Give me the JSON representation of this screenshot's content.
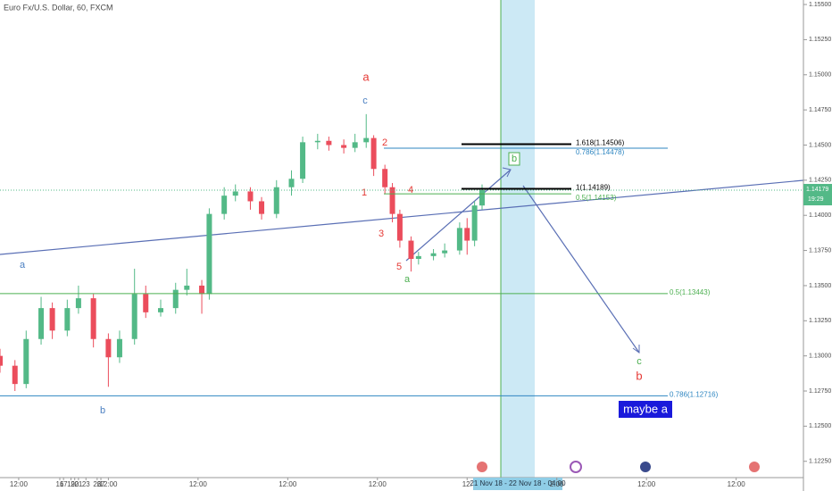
{
  "chart_data": {
    "type": "candlestick",
    "title": "Euro Fx/U.S. Dollar, 60, FXCM",
    "x": [
      0,
      4,
      7,
      11,
      14,
      18,
      21,
      25,
      29,
      32,
      36,
      39,
      43,
      47,
      50,
      54,
      56,
      60,
      63,
      67,
      70,
      74,
      78,
      81,
      85,
      88,
      92,
      95,
      98,
      100,
      103,
      105,
      107,
      110,
      112,
      116,
      119,
      123,
      125,
      127,
      129
    ],
    "open": [
      1.13,
      1.1293,
      1.128,
      1.1312,
      1.1334,
      1.1318,
      1.1334,
      1.1341,
      1.1312,
      1.1299,
      1.1312,
      1.1344,
      1.1331,
      1.1334,
      1.1347,
      1.135,
      1.1344,
      1.1401,
      1.1414,
      1.1417,
      1.141,
      1.1401,
      1.142,
      1.1426,
      1.1452,
      1.1453,
      1.145,
      1.1448,
      1.1452,
      1.1455,
      1.1433,
      1.142,
      1.1401,
      1.1382,
      1.1369,
      1.1371,
      1.1373,
      1.1375,
      1.1391,
      1.1382,
      1.1407
    ],
    "high": [
      1.1305,
      1.1297,
      1.1318,
      1.1342,
      1.1338,
      1.134,
      1.135,
      1.1344,
      1.1316,
      1.1318,
      1.1362,
      1.135,
      1.134,
      1.1352,
      1.1362,
      1.1354,
      1.1405,
      1.142,
      1.1422,
      1.142,
      1.1413,
      1.1425,
      1.1432,
      1.1456,
      1.1458,
      1.1456,
      1.1454,
      1.1458,
      1.1472,
      1.1457,
      1.1436,
      1.1423,
      1.1404,
      1.1385,
      1.1374,
      1.1376,
      1.138,
      1.1395,
      1.1398,
      1.141,
      1.1422
    ],
    "low": [
      1.1288,
      1.1275,
      1.1277,
      1.1308,
      1.1312,
      1.1314,
      1.133,
      1.1306,
      1.1278,
      1.1295,
      1.1308,
      1.1327,
      1.1328,
      1.133,
      1.1343,
      1.133,
      1.134,
      1.1397,
      1.141,
      1.1404,
      1.1397,
      1.1398,
      1.1414,
      1.1423,
      1.1447,
      1.1446,
      1.1444,
      1.1445,
      1.1448,
      1.1428,
      1.1415,
      1.1395,
      1.1377,
      1.136,
      1.1365,
      1.1368,
      1.137,
      1.1372,
      1.1372,
      1.1378,
      1.1404
    ],
    "close": [
      1.1293,
      1.128,
      1.1312,
      1.1334,
      1.1318,
      1.1334,
      1.1341,
      1.1312,
      1.1299,
      1.1312,
      1.1344,
      1.1331,
      1.1334,
      1.1347,
      1.135,
      1.1344,
      1.1401,
      1.1414,
      1.1417,
      1.141,
      1.1401,
      1.142,
      1.1426,
      1.1452,
      1.1453,
      1.145,
      1.1448,
      1.1452,
      1.1455,
      1.1433,
      1.142,
      1.1401,
      1.1382,
      1.1369,
      1.1371,
      1.1373,
      1.1375,
      1.1391,
      1.1382,
      1.1407,
      1.1418
    ],
    "up_color": "#53b987",
    "down_color": "#eb4d5c",
    "xlim": [
      0,
      215
    ],
    "xticks": [
      {
        "value": 5,
        "label": "12:00"
      },
      17,
      {
        "value": 29,
        "label": "12:00"
      },
      16,
      {
        "value": 53,
        "label": "12:00"
      },
      19,
      {
        "value": 77,
        "label": "12:00"
      },
      20,
      {
        "value": 101,
        "label": "12:00"
      },
      21,
      {
        "value": 125,
        "label": "12:"
      },
      {
        "value": 149,
        "label": "2:00"
      },
      23,
      {
        "value": 173,
        "label": "12:00"
      },
      26,
      {
        "value": 197,
        "label": "12:00"
      },
      27
    ],
    "ylim": [
      1.12134,
      1.15532
    ],
    "yticks": [
      {
        "value": 1.1225,
        "label": "1.12250"
      },
      {
        "value": 1.125,
        "label": "1.12500"
      },
      {
        "value": 1.1275,
        "label": "1.12750"
      },
      {
        "value": 1.13,
        "label": "1.13000"
      },
      {
        "value": 1.1325,
        "label": "1.13250"
      },
      {
        "value": 1.135,
        "label": "1.13500"
      },
      {
        "value": 1.1375,
        "label": "1.13750"
      },
      {
        "value": 1.14,
        "label": "1.14000"
      },
      {
        "value": 1.1425,
        "label": "1.14250"
      },
      {
        "value": 1.145,
        "label": "1.14500"
      },
      {
        "value": 1.1475,
        "label": "1.14750"
      },
      {
        "value": 1.15,
        "label": "1.15000"
      },
      {
        "value": 1.1525,
        "label": "1.15250"
      },
      {
        "value": 1.155,
        "label": "1.15500"
      }
    ],
    "last_price": {
      "value": 1.14179,
      "label": "1.14179"
    },
    "countdown": "19:29",
    "levels": [
      {
        "label": "0.5(1.13443)",
        "value": 1.13443,
        "color": "#4caf50"
      },
      {
        "label": "0.786(1.12716)",
        "value": 1.12716,
        "color": "#2e86c1"
      },
      {
        "label": "1.618(1.14506)",
        "value": 1.14506,
        "color": "#000000"
      },
      {
        "label": "0.786(1.14478)",
        "value": 1.14478,
        "color": "#2e86c1"
      },
      {
        "label": "1(1.14189)",
        "value": 1.14189,
        "color": "#000000"
      },
      {
        "label": "0.5(1.14153)",
        "value": 1.14153,
        "color": "#4caf50"
      }
    ],
    "annotations": [
      "a",
      "c",
      "2",
      "1",
      "4",
      "3",
      "5",
      "a",
      "b",
      "a",
      "b",
      "c",
      "b",
      "maybe a"
    ],
    "range_label": "21 Nov 18 - 22 Nov 18 - 04:00"
  }
}
